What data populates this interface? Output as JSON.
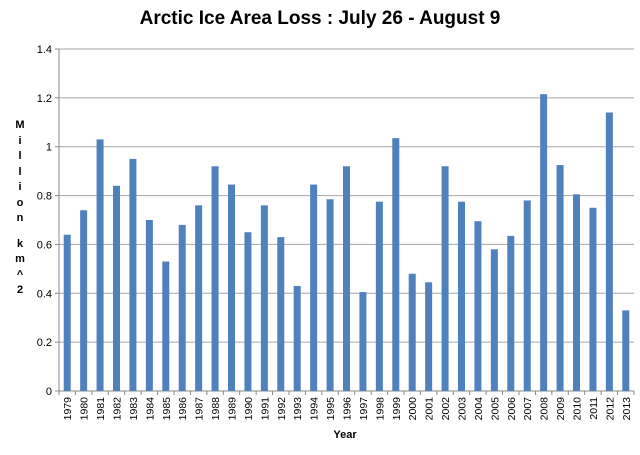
{
  "chart_data": {
    "type": "bar",
    "title": "Arctic Ice Area Loss : July 26 - August 9",
    "xlabel": "Year",
    "ylabel": "Million km^2",
    "ylim": [
      0,
      1.4
    ],
    "yticks": [
      "0",
      "0.2",
      "0.4",
      "0.6",
      "0.8",
      "1",
      "1.2",
      "1.4"
    ],
    "grid": true,
    "bar_color": "#4F81BD",
    "categories": [
      "1979",
      "1980",
      "1981",
      "1982",
      "1983",
      "1984",
      "1985",
      "1986",
      "1987",
      "1988",
      "1989",
      "1990",
      "1991",
      "1992",
      "1993",
      "1994",
      "1995",
      "1996",
      "1997",
      "1998",
      "1999",
      "2000",
      "2001",
      "2002",
      "2003",
      "2004",
      "2005",
      "2006",
      "2007",
      "2008",
      "2009",
      "2010",
      "2011",
      "2012",
      "2013"
    ],
    "values": [
      0.64,
      0.74,
      1.03,
      0.84,
      0.95,
      0.7,
      0.53,
      0.68,
      0.76,
      0.92,
      0.845,
      0.65,
      0.76,
      0.63,
      0.43,
      0.845,
      0.785,
      0.92,
      0.405,
      0.775,
      1.035,
      0.48,
      0.445,
      0.92,
      0.775,
      0.695,
      0.58,
      0.635,
      0.78,
      1.215,
      0.925,
      0.805,
      0.75,
      1.14,
      0.33
    ]
  }
}
